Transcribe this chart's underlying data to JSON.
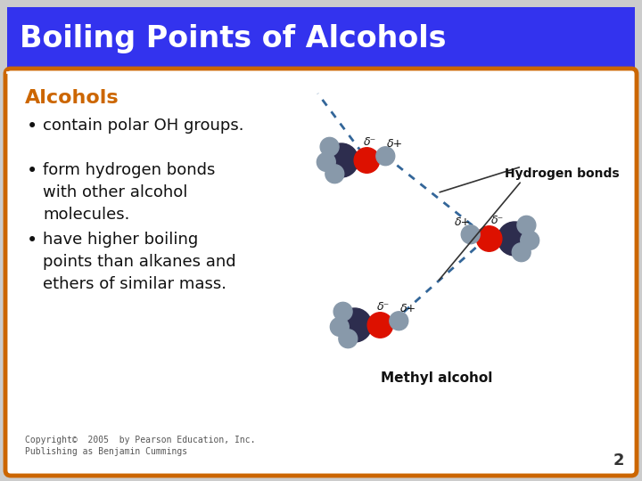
{
  "title": "Boiling Points of Alcohols",
  "title_bg": "#3333ee",
  "title_color": "#ffffff",
  "title_fontsize": 24,
  "slide_bg": "#ffffff",
  "border_color": "#cc6600",
  "section_heading": "Alcohols",
  "section_heading_color": "#cc6600",
  "section_heading_fontsize": 16,
  "bullets": [
    "contain polar OH groups.",
    "form hydrogen bonds\nwith other alcohol\nmolecules.",
    "have higher boiling\npoints than alkanes and\nethers of similar mass."
  ],
  "bullet_fontsize": 13,
  "bullet_color": "#111111",
  "copyright": "Copyright©  2005  by Pearson Education, Inc.\nPublishing as Benjamin Cummings",
  "copyright_fontsize": 7,
  "page_number": "2",
  "page_number_fontsize": 13,
  "slide_bg_outer": "#cccccc",
  "label_hydrogen_bonds": "Hydrogen bonds",
  "label_methyl_alcohol": "Methyl alcohol",
  "c_color": "#2d2d4e",
  "o_color": "#dd1100",
  "h_color": "#8899aa",
  "hbond_color": "#336699"
}
